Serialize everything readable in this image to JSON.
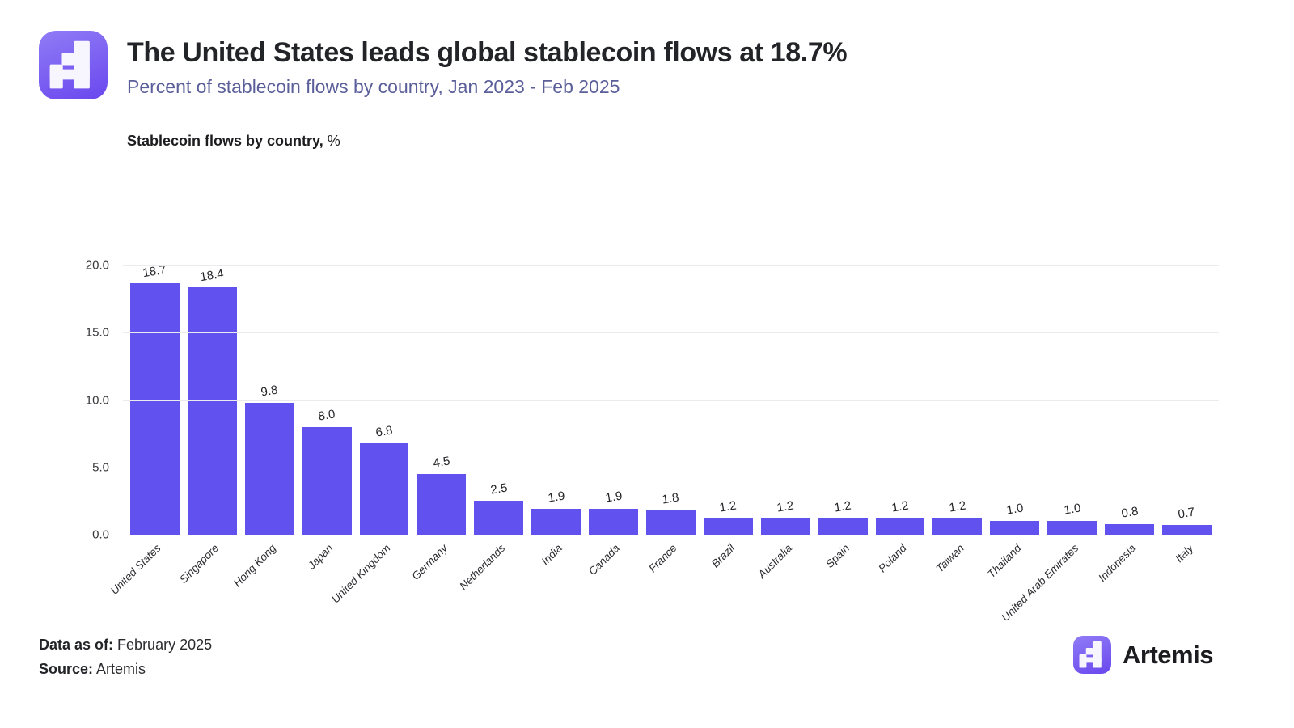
{
  "header": {
    "title": "The United States leads global stablecoin flows at 18.7%",
    "subtitle": "Percent of stablecoin flows by country, Jan 2023 - Feb 2025"
  },
  "chart_heading": {
    "text": "Stablecoin flows by country,",
    "suffix": "%"
  },
  "chart_data": {
    "type": "bar",
    "title": "Stablecoin flows by country, %",
    "categories": [
      "United States",
      "Singapore",
      "Hong Kong",
      "Japan",
      "United Kingdom",
      "Germany",
      "Netherlands",
      "India",
      "Canada",
      "France",
      "Brazil",
      "Australia",
      "Spain",
      "Poland",
      "Taiwan",
      "Thailand",
      "United Arab Emirates",
      "Indonesia",
      "Italy"
    ],
    "values": [
      18.7,
      18.4,
      9.8,
      8.0,
      6.8,
      4.5,
      2.5,
      1.9,
      1.9,
      1.8,
      1.2,
      1.2,
      1.2,
      1.2,
      1.2,
      1.0,
      1.0,
      0.8,
      0.7
    ],
    "value_labels": [
      "18.7",
      "18.4",
      "9.8",
      "8.0",
      "6.8",
      "4.5",
      "2.5",
      "1.9",
      "1.9",
      "1.8",
      "1.2",
      "1.2",
      "1.2",
      "1.2",
      "1.2",
      "1.0",
      "1.0",
      "0.8",
      "0.7"
    ],
    "xlabel": "",
    "ylabel": "",
    "ylim": [
      0,
      20
    ],
    "yticks": [
      {
        "label": "20.0",
        "value": 20
      },
      {
        "label": "15.0",
        "value": 15
      },
      {
        "label": "10.0",
        "value": 10
      },
      {
        "label": "5.0",
        "value": 5
      },
      {
        "label": "0.0",
        "value": 0
      }
    ],
    "grid": "horizontal-on",
    "legend_position": "none",
    "bar_color": "#6152f0"
  },
  "footer": {
    "data_as_of_label": "Data as of:",
    "data_as_of_value": "February 2025",
    "source_label": "Source:",
    "source_value": "Artemis"
  },
  "branding": {
    "wordmark": "Artemis",
    "logo": "artemis-pixel-a-icon"
  },
  "colors": {
    "accent": "#6152f0",
    "subtitle_text": "#5a5e99",
    "title_text": "#232428",
    "gridline": "#ebebee",
    "axis_line": "#b2b2b7"
  }
}
